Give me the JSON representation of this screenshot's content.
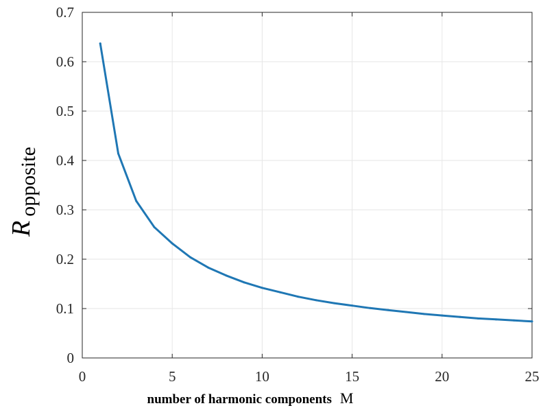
{
  "chart_data": {
    "type": "line",
    "title": "",
    "xlabel": "number of harmonic components",
    "xlabel_symbol": "M",
    "ylabel": "R",
    "ylabel_subscript": "opposite",
    "xlim": [
      0,
      25
    ],
    "ylim": [
      0,
      0.7
    ],
    "xticks": [
      0,
      5,
      10,
      15,
      20,
      25
    ],
    "xtick_labels": [
      "0",
      "5",
      "10",
      "15",
      "20",
      "25"
    ],
    "yticks": [
      0,
      0.1,
      0.2,
      0.3,
      0.4,
      0.5,
      0.6,
      0.7
    ],
    "ytick_labels": [
      "0",
      "0.1",
      "0.2",
      "0.3",
      "0.4",
      "0.5",
      "0.6",
      "0.7"
    ],
    "grid": true,
    "series": [
      {
        "color": "#1f77b4",
        "x": [
          1,
          2,
          3,
          4,
          5,
          6,
          7,
          8,
          9,
          10,
          11,
          12,
          13,
          14,
          15,
          16,
          17,
          18,
          19,
          20,
          21,
          22,
          23,
          24,
          25
        ],
        "y": [
          0.637,
          0.414,
          0.318,
          0.265,
          0.232,
          0.204,
          0.183,
          0.167,
          0.153,
          0.142,
          0.133,
          0.124,
          0.117,
          0.111,
          0.106,
          0.101,
          0.097,
          0.093,
          0.089,
          0.086,
          0.083,
          0.08,
          0.078,
          0.076,
          0.074
        ]
      }
    ]
  }
}
